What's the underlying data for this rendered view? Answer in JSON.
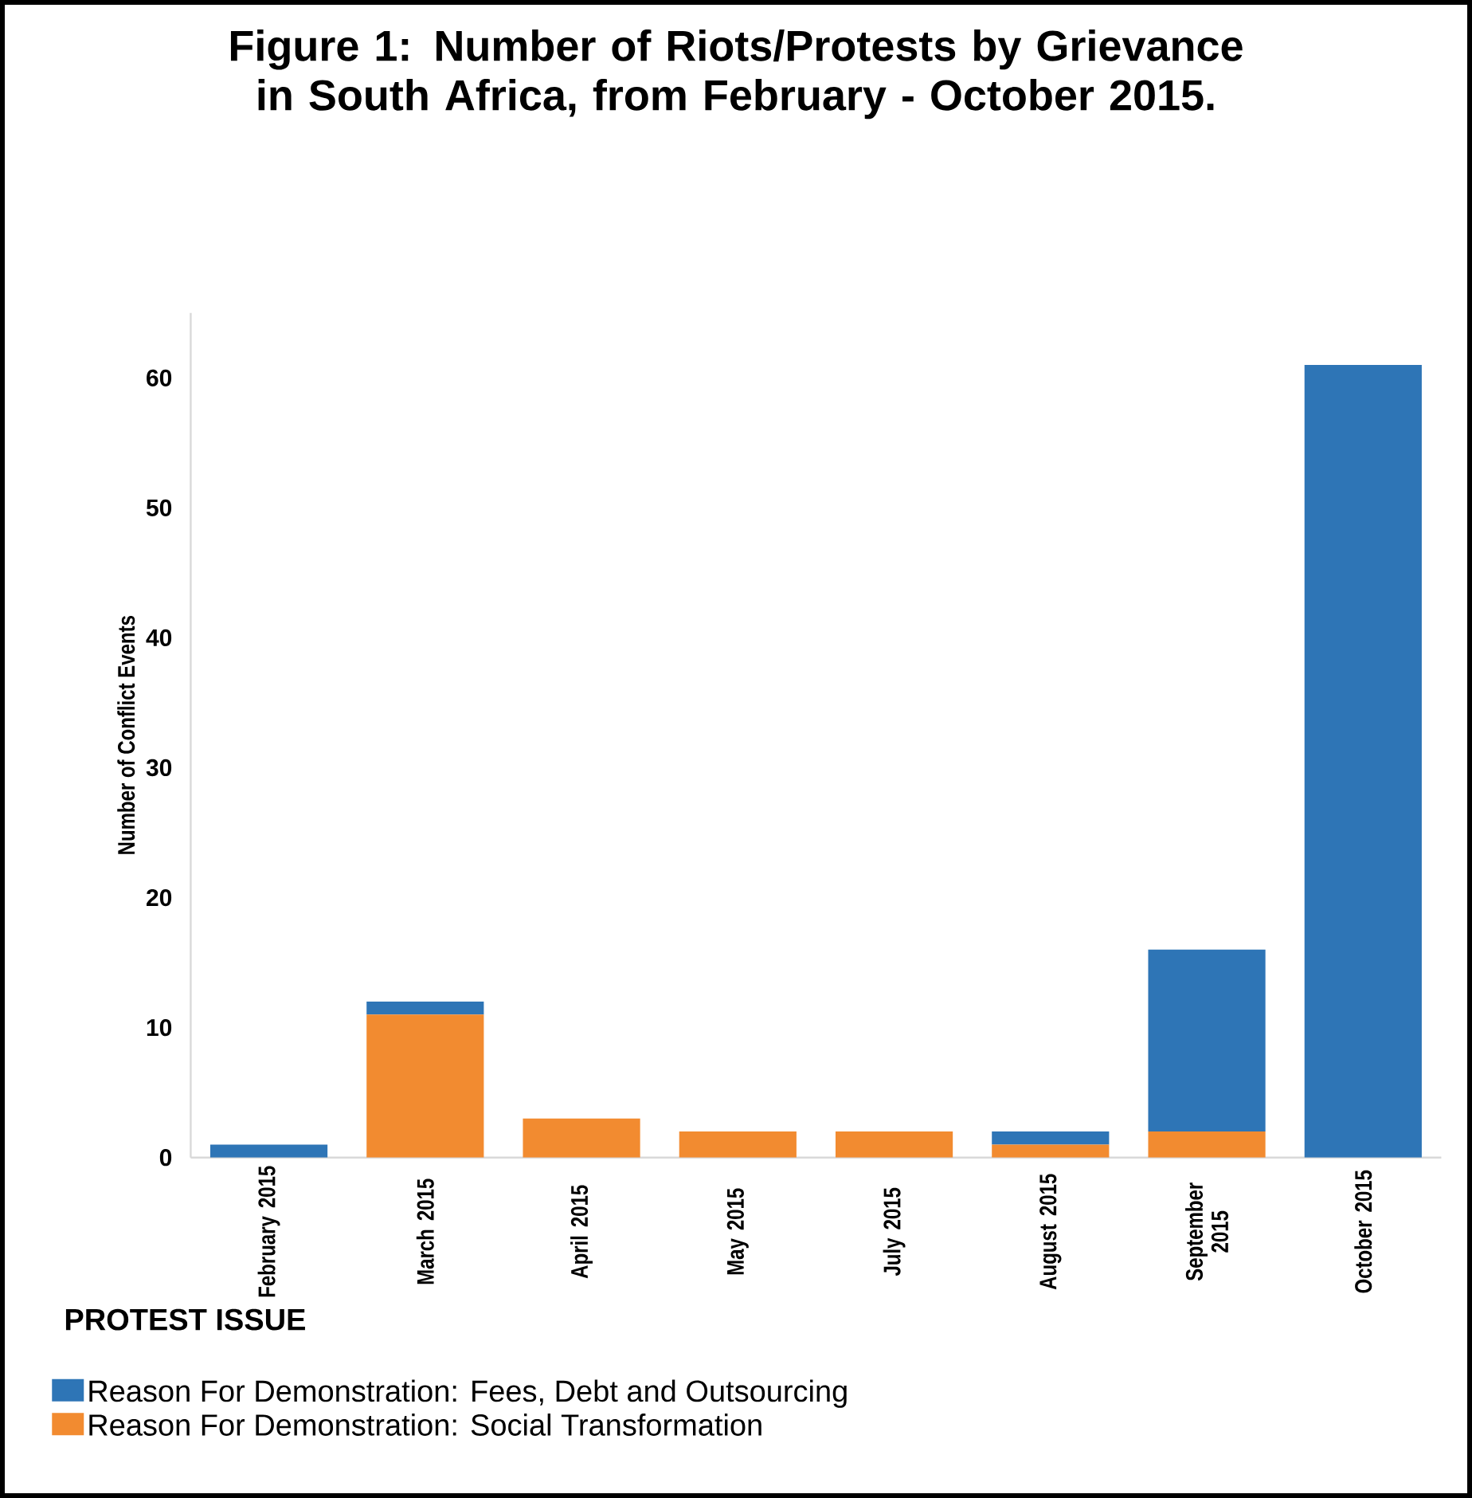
{
  "chart_data": {
    "type": "bar",
    "title": "Figure 1: Number of Riots/Protests by Grievance in South Africa, from February - October 2015.",
    "ylabel": "Number of Conflict Events",
    "legend_title": "PROTEST ISSUE",
    "categories": [
      "February 2015",
      "March 2015",
      "April 2015",
      "May 2015",
      "July 2015",
      "August 2015",
      "September 2015",
      "October 2015"
    ],
    "stacked": true,
    "series": [
      {
        "name": "Reason For Demonstration: Social Transformation",
        "color": "#f28b30",
        "values": [
          0,
          11,
          3,
          2,
          2,
          1,
          2,
          0
        ]
      },
      {
        "name": "Reason For Demonstration: Fees, Debt and Outsourcing",
        "color": "#2e75b6",
        "values": [
          1,
          1,
          0,
          0,
          0,
          1,
          14,
          61
        ]
      }
    ],
    "ylim": [
      0,
      65
    ],
    "yticks": [
      0,
      10,
      20,
      30,
      40,
      50,
      60
    ],
    "grid": false,
    "legend": "bottom"
  }
}
